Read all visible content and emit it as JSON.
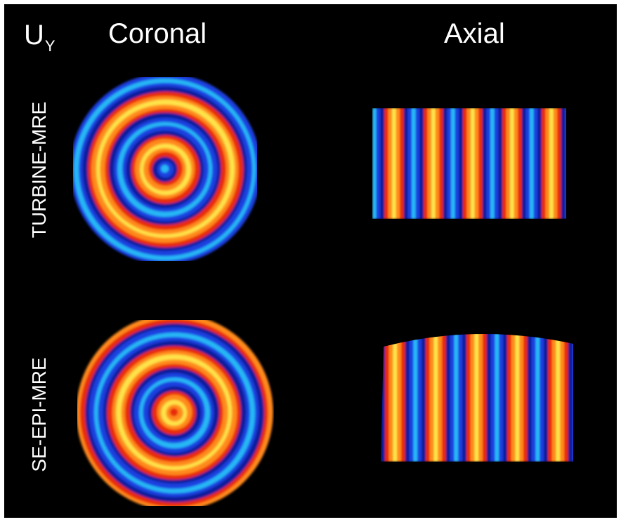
{
  "header": {
    "component_label": "U",
    "component_subscript": "Y",
    "column_coronal": "Coronal",
    "column_axial": "Axial"
  },
  "rows": [
    {
      "label": "TURBINE-MRE"
    },
    {
      "label": "SE-EPI-MRE"
    }
  ],
  "colors": {
    "background": "#000000",
    "red": "#e8290f",
    "orange": "#ff8a1a",
    "yellow": "#ffe34a",
    "blue": "#1a3fe0",
    "cyan": "#27b8f5",
    "dark_blue": "#0a1a9a"
  }
}
